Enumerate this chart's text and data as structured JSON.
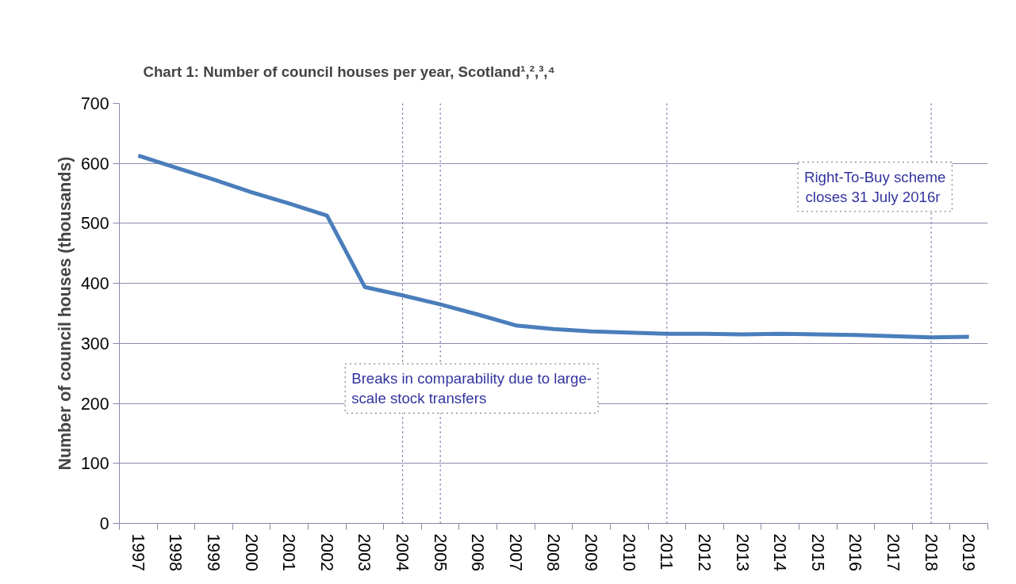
{
  "chart_data": {
    "type": "line",
    "title": "Chart 1:  Number of council houses per year, Scotland¹,²,³,⁴",
    "ylabel": "Number of council houses (thousands)",
    "categories": [
      "1997",
      "1998",
      "1999",
      "2000",
      "2001",
      "2002",
      "2003",
      "2004",
      "2005",
      "2006",
      "2007",
      "2008",
      "2009",
      "2010",
      "2011",
      "2012",
      "2013",
      "2014",
      "2015",
      "2016",
      "2017",
      "2018",
      "2019"
    ],
    "series": [
      {
        "color": "#4a7ebb",
        "values": [
          613,
          593,
          573,
          552,
          533,
          513,
          394,
          380,
          365,
          348,
          330,
          324,
          320,
          318,
          316,
          316,
          315,
          316,
          315,
          314,
          312,
          310,
          311
        ]
      }
    ],
    "ylim": [
      0,
      700
    ],
    "yticks": [
      0,
      100,
      200,
      300,
      400,
      500,
      600,
      700
    ],
    "grid": "y",
    "marker": "none",
    "line_style": "solid",
    "ref_lines": [
      {
        "axis": "x",
        "value": "2004",
        "label": null,
        "color": "#5a5a9a",
        "line_style": "dotted"
      },
      {
        "axis": "x",
        "value": "2005",
        "label": null,
        "color": "#5a5a9a",
        "line_style": "dotted"
      },
      {
        "axis": "x",
        "value": "2011",
        "label": null,
        "color": "#5a5a9a",
        "line_style": "dotted"
      },
      {
        "axis": "x",
        "value": "2018",
        "label": null,
        "color": "#5a5a9a",
        "line_style": "dotted"
      }
    ],
    "annotations": [
      "Breaks in comparability due to large-\nscale stock transfers",
      "Right-To-Buy scheme\ncloses  31 July 2016r"
    ]
  }
}
